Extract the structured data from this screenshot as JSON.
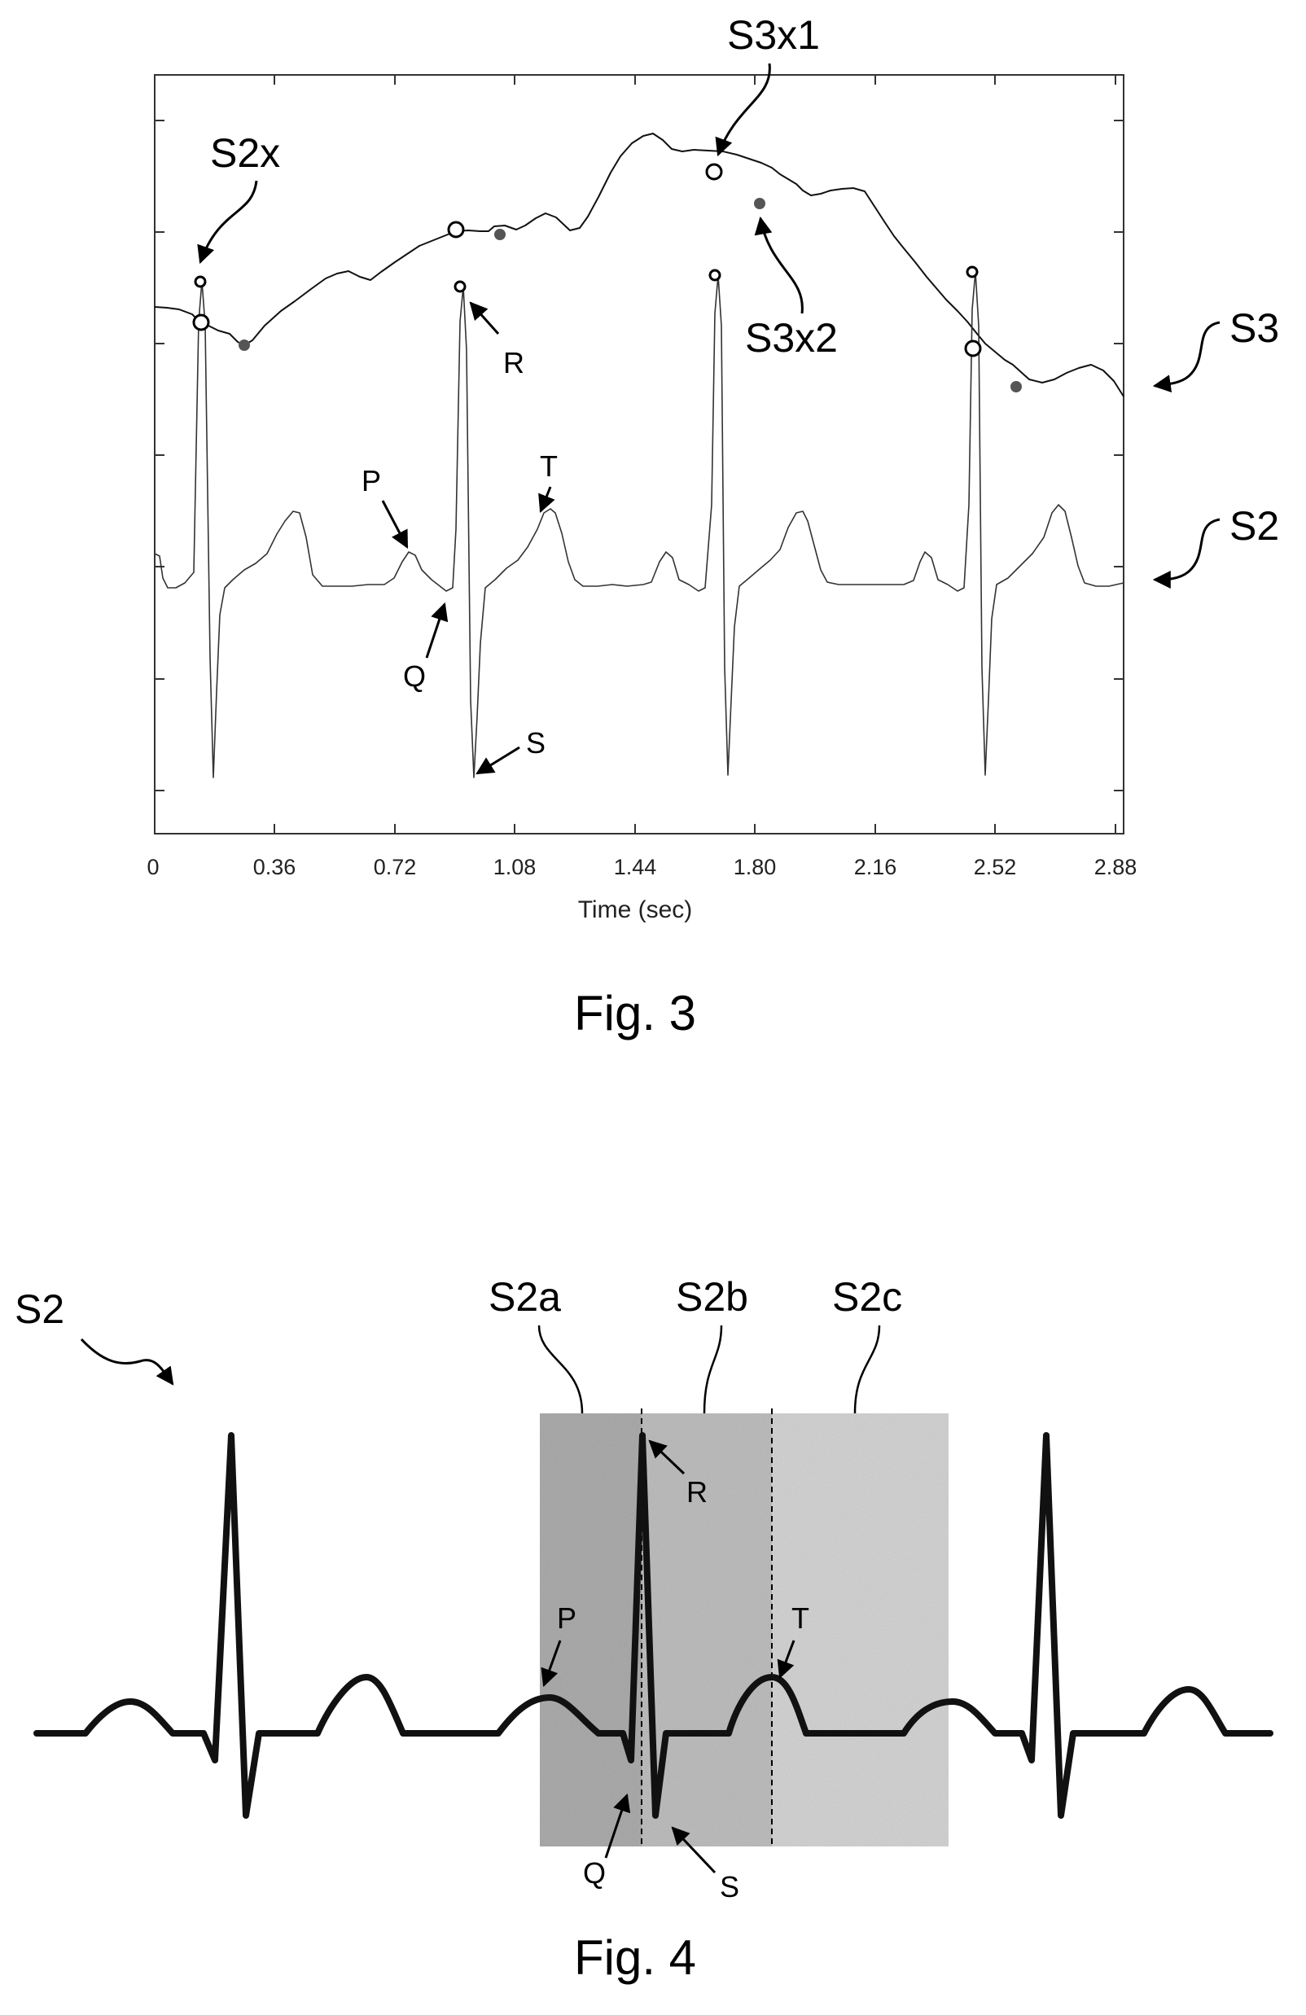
{
  "figure3": {
    "caption": "Fig. 3",
    "xlabel": "Time (sec)",
    "xticks": [
      "0",
      "0.36",
      "0.72",
      "1.08",
      "1.44",
      "1.80",
      "2.16",
      "2.52",
      "2.88"
    ],
    "signal_labels": {
      "upper": "S3",
      "lower": "S2"
    },
    "annotations": {
      "s2x": "S2x",
      "s3x1": "S3x1",
      "s3x2": "S3x2",
      "r": "R",
      "p": "P",
      "t": "T",
      "q": "Q",
      "s": "S"
    }
  },
  "figure4": {
    "caption": "Fig. 4",
    "signal_label": "S2",
    "segments": [
      "S2a",
      "S2b",
      "S2c"
    ],
    "annotations": {
      "r": "R",
      "p": "P",
      "t": "T",
      "q": "Q",
      "s": "S"
    }
  }
}
